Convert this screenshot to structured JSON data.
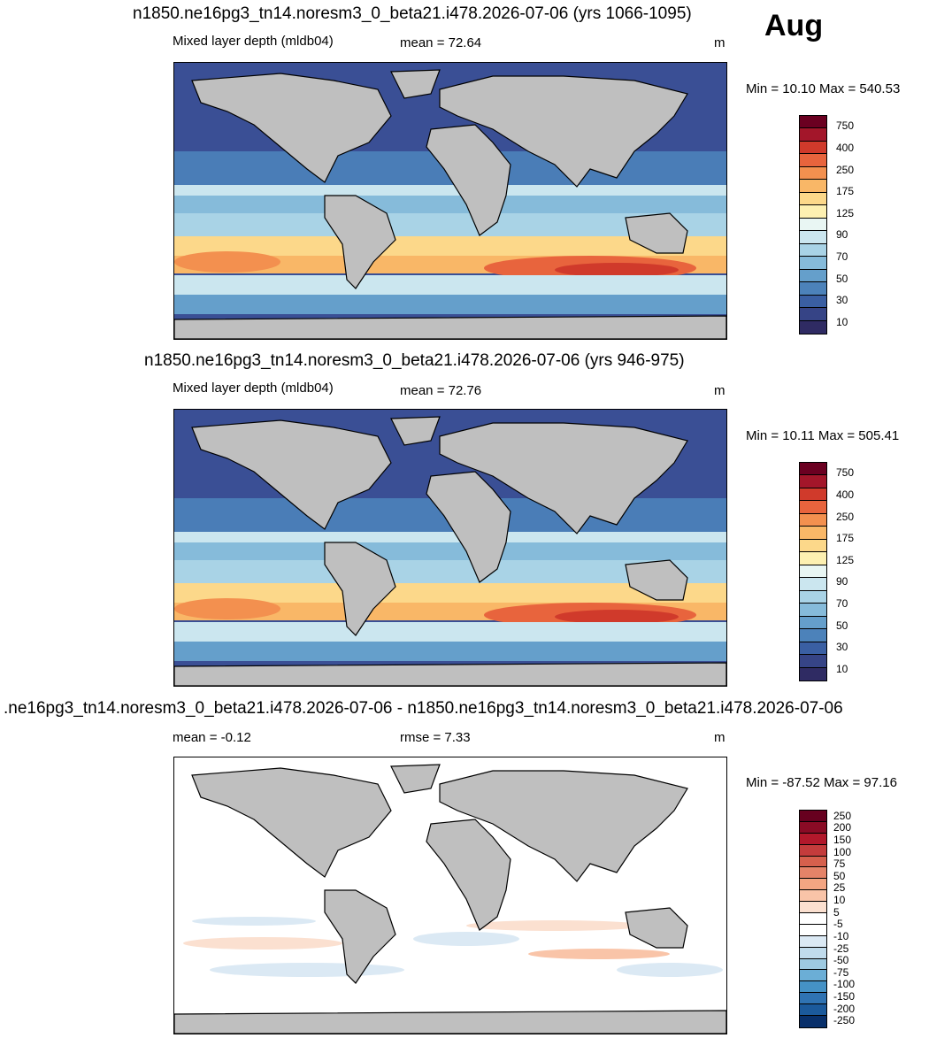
{
  "month": "Aug",
  "panels": [
    {
      "title": "n1850.ne16pg3_tn14.noresm3_0_beta21.i478.2026-07-06 (yrs 1066-1095)",
      "left_label": "Mixed layer depth (mldb04)",
      "center_label": "mean =  72.64",
      "units": "m",
      "minmax": "Min =  10.10 Max = 540.53",
      "colorbar_labels": [
        "750",
        "400",
        "250",
        "175",
        "125",
        "90",
        "70",
        "50",
        "30",
        "10"
      ],
      "colorbar_colors": [
        "#6b0021",
        "#a3162a",
        "#d03a2b",
        "#e8643d",
        "#f3904f",
        "#f9b767",
        "#fcd88a",
        "#fdf0b1",
        "#e9f6f3",
        "#cbe6ef",
        "#a9d3e6",
        "#86bbda",
        "#659fcb",
        "#4c82ba",
        "#3a5fa3",
        "#364486",
        "#2f2b63"
      ],
      "ocean_color": "#3a4f95"
    },
    {
      "title": "n1850.ne16pg3_tn14.noresm3_0_beta21.i478.2026-07-06 (yrs 946-975)",
      "left_label": "Mixed layer depth (mldb04)",
      "center_label": "mean =  72.76",
      "units": "m",
      "minmax": "Min =  10.11 Max = 505.41",
      "colorbar_labels": [
        "750",
        "400",
        "250",
        "175",
        "125",
        "90",
        "70",
        "50",
        "30",
        "10"
      ],
      "colorbar_colors": [
        "#6b0021",
        "#a3162a",
        "#d03a2b",
        "#e8643d",
        "#f3904f",
        "#f9b767",
        "#fcd88a",
        "#fdf0b1",
        "#e9f6f3",
        "#cbe6ef",
        "#a9d3e6",
        "#86bbda",
        "#659fcb",
        "#4c82ba",
        "#3a5fa3",
        "#364486",
        "#2f2b63"
      ],
      "ocean_color": "#3a4f95"
    },
    {
      "title": ".ne16pg3_tn14.noresm3_0_beta21.i478.2026-07-06 - n1850.ne16pg3_tn14.noresm3_0_beta21.i478.2026-07-06",
      "left_label": "mean =  -0.12",
      "center_label": "rmse =   7.33",
      "units": "m",
      "minmax": "Min = -87.52 Max =  97.16",
      "colorbar_labels": [
        "250",
        "200",
        "150",
        "100",
        "75",
        "50",
        "25",
        "10",
        "5",
        "-5",
        "-10",
        "-25",
        "-50",
        "-75",
        "-100",
        "-150",
        "-200",
        "-250"
      ],
      "colorbar_colors": [
        "#67001f",
        "#8a0b25",
        "#b2182b",
        "#c43c3c",
        "#d6604d",
        "#e58368",
        "#f4a582",
        "#f9c4a8",
        "#fbe0d0",
        "#ffffff",
        "#ffffff",
        "#dbe9f4",
        "#c0dbec",
        "#9ecae1",
        "#6baed6",
        "#4592c6",
        "#2f73b3",
        "#1b5a9c",
        "#08306b"
      ],
      "ocean_color": "#ffffff"
    }
  ]
}
